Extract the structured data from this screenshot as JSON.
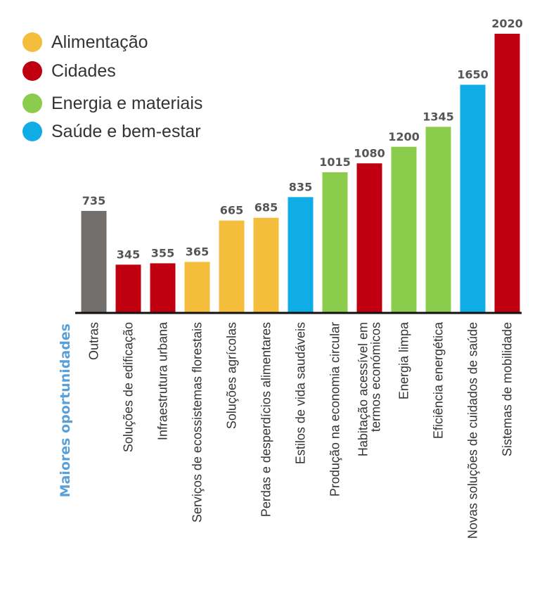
{
  "chart_data": {
    "type": "bar",
    "xlabel": "Maiores oportunidades",
    "ylabel": "",
    "title": "",
    "ylim": [
      0,
      2020
    ],
    "grid": false,
    "legend_position": "top-left",
    "legend": [
      {
        "label": "Alimentação",
        "color": "#f4bd3b"
      },
      {
        "label": "Cidades",
        "color": "#c00010"
      },
      {
        "label": "Energia e materiais",
        "color": "#8ccc4c"
      },
      {
        "label": "Saúde e bem-estar",
        "color": "#10ace6"
      }
    ],
    "categories": [
      "Outras",
      "Soluções de edificação",
      "Infraestrutura urbana",
      "Serviços de ecossistemas florestais",
      "Soluções agrícolas",
      "Perdas e desperdícios alimentares",
      "Estilos de vida saudáveis",
      "Produção na economia circular",
      "Habitação acessível em termos económicos",
      "Energia limpa",
      "Eficiência energética",
      "Novas soluções de cuidados de saúde",
      "Sistemas de mobilidade"
    ],
    "category_lines": [
      [
        "Outras"
      ],
      [
        "Soluções de edificação"
      ],
      [
        "Infraestrutura urbana"
      ],
      [
        "Serviços de ecossistemas florestais"
      ],
      [
        "Soluções agrícolas"
      ],
      [
        "Perdas e desperdícios alimentares"
      ],
      [
        "Estilos de vida saudáveis"
      ],
      [
        "Produção na economia circular"
      ],
      [
        "Habitação acessível em",
        "termos económicos"
      ],
      [
        "Energia limpa"
      ],
      [
        "Eficiência energética"
      ],
      [
        "Novas soluções de cuidados de saúde"
      ],
      [
        "Sistemas de mobilidade"
      ]
    ],
    "values": [
      735,
      345,
      355,
      365,
      665,
      685,
      835,
      1015,
      1080,
      1200,
      1345,
      1650,
      2020
    ],
    "colors": [
      "#716e6c",
      "#c00010",
      "#c00010",
      "#f4bd3b",
      "#f4bd3b",
      "#f4bd3b",
      "#10ace6",
      "#8ccc4c",
      "#c00010",
      "#8ccc4c",
      "#8ccc4c",
      "#10ace6",
      "#c00010"
    ],
    "axis_title_color": "#5aa0d8",
    "axis_color": "#111111"
  }
}
